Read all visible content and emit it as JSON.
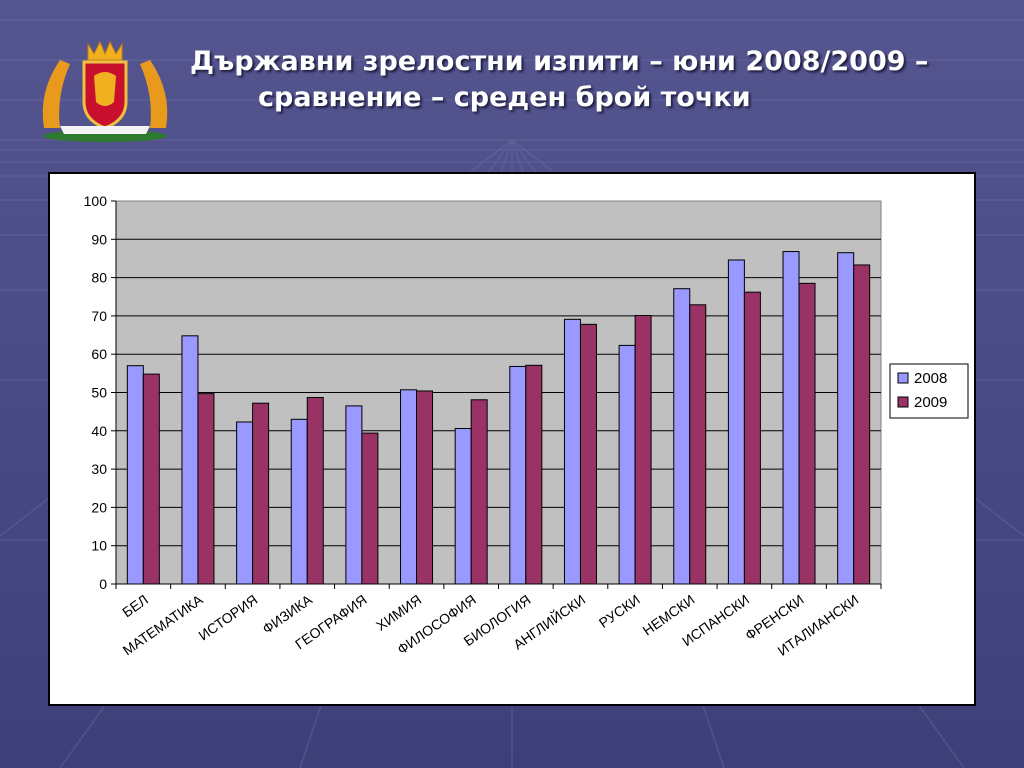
{
  "slide": {
    "title_line1": "Държавни зрелостни изпити – юни 2008/2009 –",
    "title_line2": "сравнение – среден брой точки"
  },
  "colors": {
    "background": "#4a4a84",
    "plot_area": "#c0c0c0",
    "series_2008": "#9999ff",
    "series_2009": "#993366"
  },
  "icons": {
    "logo": "bulgarian-coat-of-arms"
  },
  "chart_data": {
    "type": "bar",
    "title": "",
    "xlabel": "",
    "ylabel": "",
    "ylim": [
      0,
      100
    ],
    "yticks": [
      0,
      10,
      20,
      30,
      40,
      50,
      60,
      70,
      80,
      90,
      100
    ],
    "grid": true,
    "legend_position": "right",
    "categories": [
      "БЕЛ",
      "МАТЕМАТИКА",
      "ИСТОРИЯ",
      "ФИЗИКА",
      "ГЕОГРАФИЯ",
      "ХИМИЯ",
      "ФИЛОСОФИЯ",
      "БИОЛОГИЯ",
      "АНГЛИЙСКИ",
      "РУСКИ",
      "НЕМСКИ",
      "ИСПАНСКИ",
      "ФРЕНСКИ",
      "ИТАЛИАНСКИ"
    ],
    "series": [
      {
        "name": "2008",
        "values": [
          57,
          64.8,
          42.3,
          43,
          46.5,
          50.7,
          40.6,
          56.8,
          69.1,
          62.3,
          77.1,
          84.6,
          86.8,
          86.5
        ]
      },
      {
        "name": "2009",
        "values": [
          54.8,
          49.7,
          47.2,
          48.7,
          39.4,
          50.4,
          48.1,
          57.1,
          67.8,
          70.1,
          72.9,
          76.2,
          78.5,
          83.3
        ]
      }
    ]
  }
}
